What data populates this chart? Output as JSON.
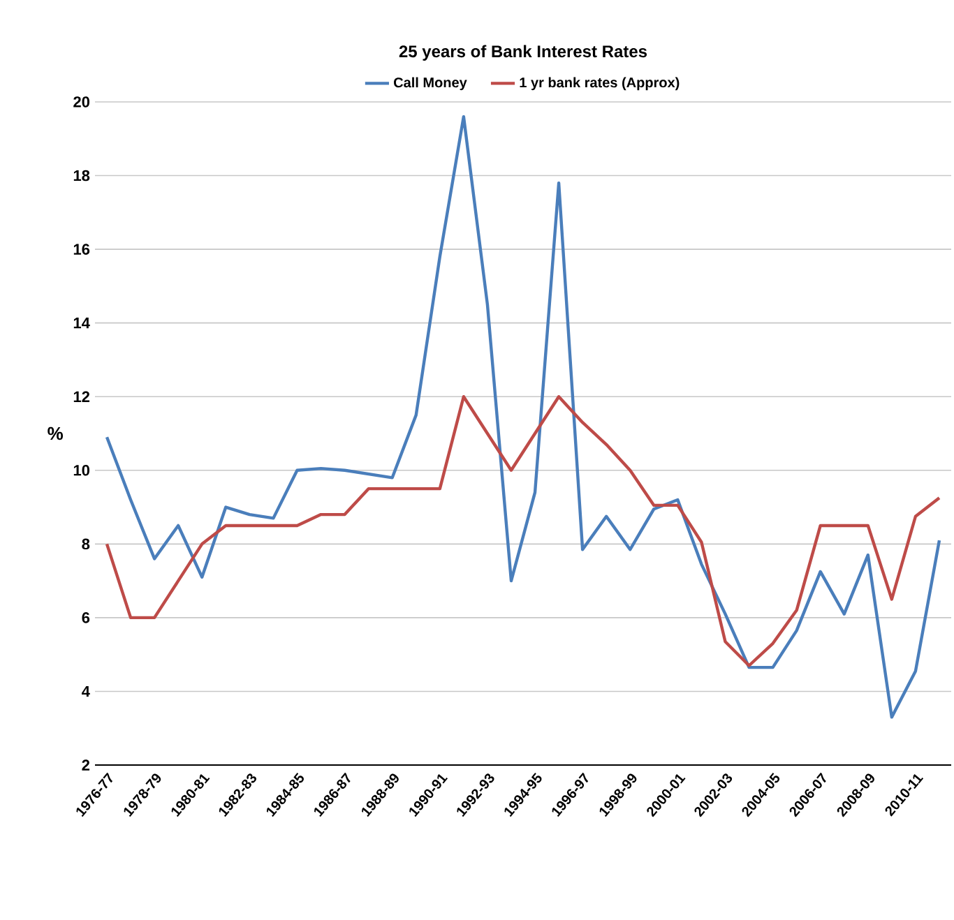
{
  "chart_data": {
    "type": "line",
    "title": "25 years of Bank Interest Rates",
    "ylabel": "%",
    "categories": [
      "1976-77",
      null,
      "1978-79",
      null,
      "1980-81",
      null,
      "1982-83",
      null,
      "1984-85",
      null,
      "1986-87",
      null,
      "1988-89",
      null,
      "1990-91",
      null,
      "1992-93",
      null,
      "1994-95",
      null,
      "1996-97",
      null,
      "1998-99",
      null,
      "2000-01",
      null,
      "2002-03",
      null,
      "2004-05",
      null,
      "2006-07",
      null,
      "2008-09",
      null,
      "2010-11",
      null
    ],
    "series": [
      {
        "name": "Call Money",
        "color": "#4a7ebb",
        "values": [
          10.9,
          9.2,
          7.6,
          8.5,
          7.1,
          9.0,
          8.8,
          8.7,
          10.0,
          10.05,
          10.0,
          9.9,
          9.8,
          11.5,
          15.8,
          19.6,
          14.5,
          7.0,
          9.4,
          17.8,
          7.85,
          8.75,
          7.85,
          8.95,
          9.2,
          7.45,
          6.1,
          4.65,
          4.65,
          5.65,
          7.25,
          6.1,
          7.7,
          3.3,
          4.55,
          8.1
        ]
      },
      {
        "name": "1 yr bank rates (Approx)",
        "color": "#be4b48",
        "values": [
          8.0,
          6.0,
          6.0,
          7.0,
          8.0,
          8.5,
          8.5,
          8.5,
          8.5,
          8.8,
          8.8,
          9.5,
          9.5,
          9.5,
          9.5,
          12.0,
          11.0,
          10.0,
          11.0,
          12.0,
          11.3,
          10.7,
          10.0,
          9.05,
          9.05,
          8.05,
          5.35,
          4.7,
          5.3,
          6.2,
          8.5,
          8.5,
          8.5,
          6.5,
          8.75,
          9.25
        ]
      }
    ],
    "ylim": [
      2,
      20
    ],
    "yticks": [
      2,
      4,
      6,
      8,
      10,
      12,
      14,
      16,
      18,
      20
    ],
    "grid": "y",
    "legend": "top",
    "marker": "none",
    "line_style": "solid"
  }
}
